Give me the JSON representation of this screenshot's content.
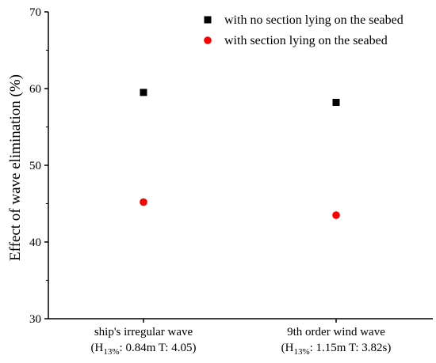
{
  "chart_data": {
    "type": "scatter",
    "categories": [
      {
        "line1": "ship's irregular wave",
        "line2_prefix": "(H",
        "line2_sub": "13%",
        "line2_suffix": ": 0.84m  T: 4.05)"
      },
      {
        "line1": "9th order wind wave",
        "line2_prefix": "(H",
        "line2_sub": "13%",
        "line2_suffix": ": 1.15m  T: 3.82s)"
      }
    ],
    "series": [
      {
        "name": "with no section lying on the seabed",
        "marker": "square",
        "color": "#000000",
        "values": [
          59.5,
          58.2
        ]
      },
      {
        "name": "with section lying on the seabed",
        "marker": "circle",
        "color": "#ff0000",
        "values": [
          45.2,
          43.5
        ]
      }
    ],
    "ylabel": "Effect of wave elimination (%)",
    "ylim": [
      30,
      70
    ],
    "yticks": [
      30,
      40,
      50,
      60,
      70
    ],
    "grid": false,
    "legend_position": "top-right"
  }
}
